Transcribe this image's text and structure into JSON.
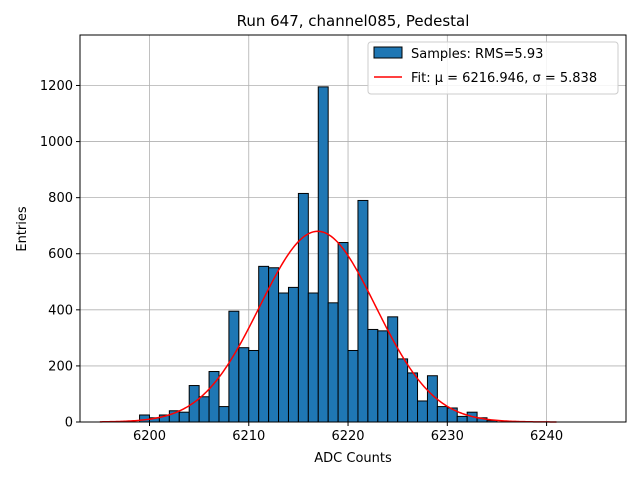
{
  "chart_data": {
    "type": "bar",
    "title": "Run 647, channel085, Pedestal",
    "xlabel": "ADC Counts",
    "ylabel": "Entries",
    "xlim": [
      6193,
      6248
    ],
    "ylim": [
      0,
      1380
    ],
    "xticks": [
      6200,
      6210,
      6220,
      6230,
      6240
    ],
    "yticks": [
      0,
      200,
      400,
      600,
      800,
      1000,
      1200
    ],
    "grid": true,
    "bin_width": 1,
    "histogram": {
      "name": "Samples: RMS=5.93",
      "color": "#1f77b4",
      "edgecolor": "#000000",
      "bins": [
        6199,
        6200,
        6201,
        6202,
        6203,
        6204,
        6205,
        6206,
        6207,
        6208,
        6209,
        6210,
        6211,
        6212,
        6213,
        6214,
        6215,
        6216,
        6217,
        6218,
        6219,
        6220,
        6221,
        6222,
        6223,
        6224,
        6225,
        6226,
        6227,
        6228,
        6229,
        6230,
        6231,
        6232,
        6233,
        6234
      ],
      "counts": [
        25,
        15,
        25,
        40,
        35,
        130,
        90,
        180,
        55,
        395,
        265,
        255,
        555,
        550,
        460,
        480,
        815,
        460,
        1195,
        425,
        640,
        255,
        790,
        330,
        325,
        375,
        225,
        175,
        75,
        165,
        55,
        50,
        20,
        35,
        15,
        5
      ]
    },
    "fit": {
      "name": "Fit: μ = 6216.946, σ = 5.838",
      "color": "#ff0000",
      "mu": 6216.946,
      "sigma": 5.838,
      "amplitude": 680,
      "x_range": [
        6195,
        6241
      ]
    },
    "legend": {
      "location": "top-right",
      "entries": [
        "Samples: RMS=5.93",
        "Fit: μ = 6216.946, σ = 5.838"
      ]
    }
  }
}
